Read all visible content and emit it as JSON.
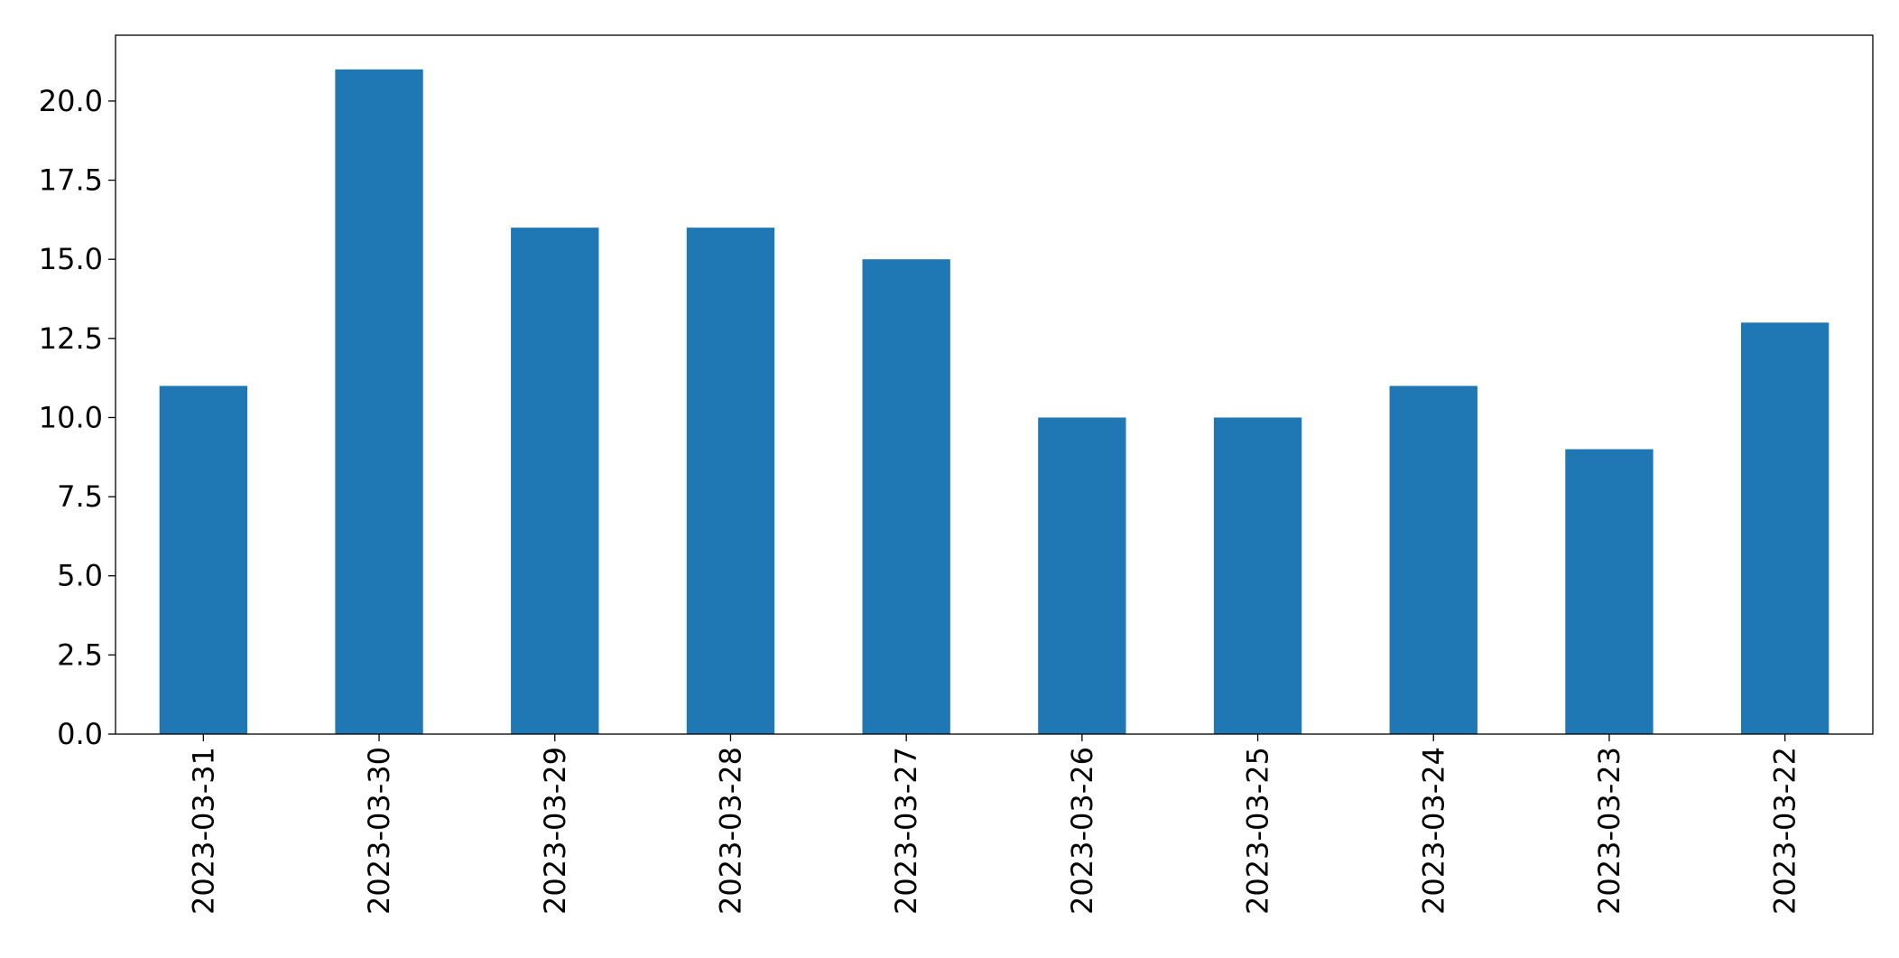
{
  "chart_data": {
    "type": "bar",
    "categories": [
      "2023-03-31",
      "2023-03-30",
      "2023-03-29",
      "2023-03-28",
      "2023-03-27",
      "2023-03-26",
      "2023-03-25",
      "2023-03-24",
      "2023-03-23",
      "2023-03-22"
    ],
    "values": [
      11,
      21,
      16,
      16,
      15,
      10,
      10,
      11,
      9,
      13
    ],
    "color": "#1f77b4",
    "ylim": [
      0,
      22.08
    ],
    "yticks": [
      {
        "value": 0,
        "label": "0.0"
      },
      2.5,
      {
        "value": 5,
        "label": "5.0"
      },
      7.5,
      {
        "value": 10,
        "label": "10.0"
      },
      12.5,
      {
        "value": 15,
        "label": "15.0"
      },
      17.5,
      {
        "value": 20,
        "label": "20.0"
      }
    ],
    "grid": false
  }
}
